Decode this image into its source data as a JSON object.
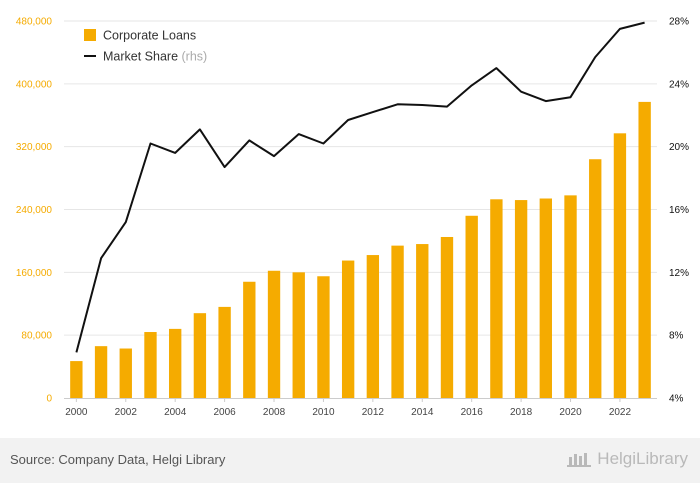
{
  "footer": {
    "source": "Source: Company Data, Helgi Library",
    "brand": "HelgiLibrary",
    "brand_icon": "helgi-logo-icon"
  },
  "colors": {
    "bar": "#F5AB00",
    "line": "#111111",
    "left_axis_text": "#F5AB00",
    "right_axis_text": "#111111",
    "grid": "#e6e6e6"
  },
  "chart_data": {
    "type": "bar",
    "title": "",
    "x": [
      2000,
      2001,
      2002,
      2003,
      2004,
      2005,
      2006,
      2007,
      2008,
      2009,
      2010,
      2011,
      2012,
      2013,
      2014,
      2015,
      2016,
      2017,
      2018,
      2019,
      2020,
      2021,
      2022,
      2023
    ],
    "x_tick_labels": [
      "2000",
      "2002",
      "2004",
      "2006",
      "2008",
      "2010",
      "2012",
      "2014",
      "2016",
      "2018",
      "2020",
      "2022"
    ],
    "series": [
      {
        "name": "Corporate Loans",
        "type": "bar",
        "axis": "left",
        "values": [
          47000,
          66000,
          63000,
          84000,
          88000,
          108000,
          116000,
          148000,
          162000,
          160000,
          155000,
          175000,
          182000,
          194000,
          196000,
          205000,
          232000,
          253000,
          252000,
          254000,
          258000,
          304000,
          337000,
          377000
        ]
      },
      {
        "name": "Market Share",
        "name_suffix": "(rhs)",
        "type": "line",
        "axis": "right",
        "values": [
          6.9,
          12.9,
          15.2,
          20.2,
          19.6,
          21.1,
          18.7,
          20.4,
          19.4,
          20.8,
          20.2,
          21.7,
          22.2,
          22.7,
          22.65,
          22.55,
          23.9,
          25.0,
          23.5,
          22.9,
          23.15,
          25.7,
          27.5,
          27.9
        ]
      }
    ],
    "y_left": {
      "min": 0,
      "max": 480000,
      "ticks": [
        "0",
        "80,000",
        "160,000",
        "240,000",
        "320,000",
        "400,000",
        "480,000"
      ]
    },
    "y_right": {
      "min": 4,
      "max": 28,
      "ticks": [
        "4%",
        "8%",
        "12%",
        "16%",
        "20%",
        "24%",
        "28%"
      ]
    },
    "grid": true,
    "legend_position": "top-left"
  }
}
